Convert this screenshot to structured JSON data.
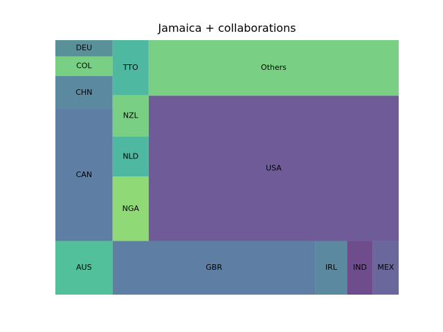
{
  "chart_data": {
    "type": "treemap",
    "title": "Jamaica + collaborations",
    "cells": [
      {
        "label": "DEU",
        "value": 2.09,
        "color": "#5a9199"
      },
      {
        "label": "COL",
        "value": 2.54,
        "color": "#79d084"
      },
      {
        "label": "CHN",
        "value": 4.23,
        "color": "#5a89a0"
      },
      {
        "label": "CAN",
        "value": 17.0,
        "color": "#5e7fa3"
      },
      {
        "label": "AUS",
        "value": 5.6,
        "color": "#52c09a"
      },
      {
        "label": "TTO",
        "value": 3.47,
        "color": "#4fb8a0"
      },
      {
        "label": "NZL",
        "value": 2.59,
        "color": "#79d084"
      },
      {
        "label": "NLD",
        "value": 2.52,
        "color": "#4fb8a0"
      },
      {
        "label": "NGA",
        "value": 4.05,
        "color": "#90d977"
      },
      {
        "label": "Others",
        "value": 24.2,
        "color": "#79d084"
      },
      {
        "label": "USA",
        "value": 63.2,
        "color": "#6e5b97"
      },
      {
        "label": "GBR",
        "value": 19.85,
        "color": "#5e7fa3"
      },
      {
        "label": "IRL",
        "value": 3.1,
        "color": "#5a89a0"
      },
      {
        "label": "IND",
        "value": 2.53,
        "color": "#6f4c8c"
      },
      {
        "label": "MEX",
        "value": 2.53,
        "color": "#6a679c"
      }
    ]
  }
}
